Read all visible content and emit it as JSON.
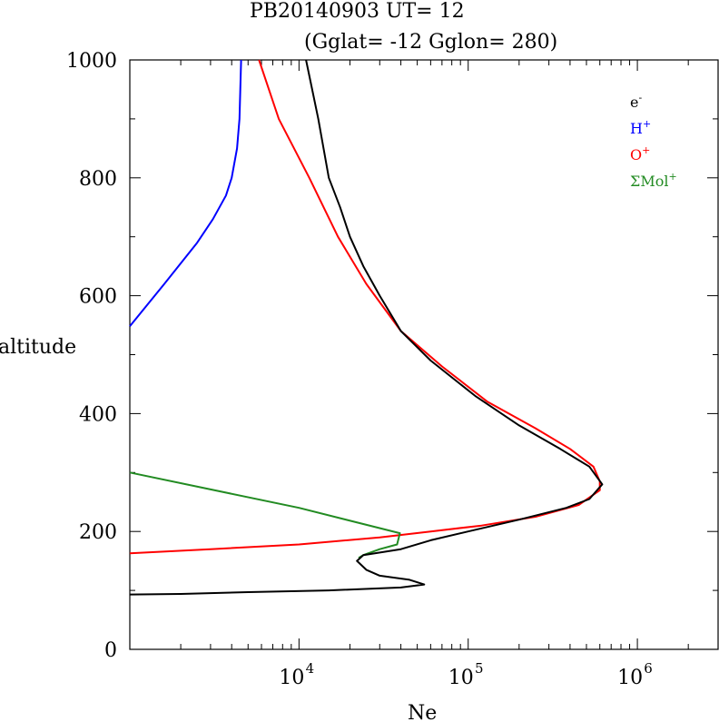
{
  "chart_data": {
    "type": "line",
    "title": "PB20140903   UT=  12",
    "subtitle": "(Gglat= -12   Gglon=  280)",
    "xlabel": "Ne",
    "ylabel": "altitude",
    "x_scale": "log",
    "xlim": [
      1000,
      3000000
    ],
    "ylim": [
      0,
      1000
    ],
    "x_ticks": [
      {
        "value": 10000,
        "base": "10",
        "exp": "4"
      },
      {
        "value": 100000,
        "base": "10",
        "exp": "5"
      },
      {
        "value": 1000000,
        "base": "10",
        "exp": "6"
      }
    ],
    "y_ticks": [
      0,
      200,
      400,
      600,
      800,
      1000
    ],
    "legend_position": "top-right",
    "legend": [
      {
        "base": "e",
        "sup": "-",
        "color": "#000000"
      },
      {
        "base": "H",
        "sup": "+",
        "color": "#0000ff"
      },
      {
        "base": "O",
        "sup": "+",
        "color": "#ff0000"
      },
      {
        "base": "ΣMol",
        "sup": "+",
        "color": "#228b22"
      }
    ],
    "series": [
      {
        "color": "#0000ff",
        "points": [
          [
            1000,
            548
          ],
          [
            1600,
            620
          ],
          [
            2500,
            690
          ],
          [
            3100,
            730
          ],
          [
            3700,
            770
          ],
          [
            4000,
            800
          ],
          [
            4300,
            850
          ],
          [
            4450,
            900
          ],
          [
            4500,
            950
          ],
          [
            4550,
            1000
          ]
        ]
      },
      {
        "color": "#ff0000",
        "points": [
          [
            1000,
            163
          ],
          [
            3000,
            170
          ],
          [
            10000,
            178
          ],
          [
            30000,
            190
          ],
          [
            60000,
            200
          ],
          [
            120000,
            210
          ],
          [
            250000,
            225
          ],
          [
            450000,
            245
          ],
          [
            600000,
            270
          ],
          [
            600000,
            285
          ],
          [
            550000,
            310
          ],
          [
            400000,
            340
          ],
          [
            250000,
            375
          ],
          [
            130000,
            420
          ],
          [
            70000,
            480
          ],
          [
            40000,
            540
          ],
          [
            25000,
            620
          ],
          [
            17000,
            700
          ],
          [
            11500,
            800
          ],
          [
            7600,
            900
          ],
          [
            5800,
            1000
          ]
        ]
      },
      {
        "color": "#228b22",
        "points": [
          [
            1000,
            300
          ],
          [
            10000,
            240
          ],
          [
            39500,
            197
          ],
          [
            38000,
            178
          ],
          [
            30000,
            170
          ],
          [
            24000,
            160
          ],
          [
            22500,
            155
          ]
        ]
      },
      {
        "color": "#000000",
        "points": [
          [
            1000,
            93
          ],
          [
            2000,
            94
          ],
          [
            5000,
            97
          ],
          [
            15000,
            100
          ],
          [
            40000,
            105
          ],
          [
            55000,
            110
          ],
          [
            45000,
            118
          ],
          [
            30000,
            125
          ],
          [
            25000,
            135
          ],
          [
            22000,
            150
          ],
          [
            24000,
            160
          ],
          [
            40000,
            170
          ],
          [
            60000,
            185
          ],
          [
            100000,
            200
          ],
          [
            200000,
            220
          ],
          [
            380000,
            240
          ],
          [
            520000,
            255
          ],
          [
            620000,
            280
          ],
          [
            520000,
            310
          ],
          [
            350000,
            340
          ],
          [
            200000,
            380
          ],
          [
            110000,
            430
          ],
          [
            60000,
            490
          ],
          [
            40000,
            540
          ],
          [
            30000,
            600
          ],
          [
            24000,
            650
          ],
          [
            20000,
            700
          ],
          [
            17500,
            750
          ],
          [
            15000,
            800
          ],
          [
            13000,
            900
          ],
          [
            11000,
            1000
          ]
        ]
      }
    ]
  }
}
